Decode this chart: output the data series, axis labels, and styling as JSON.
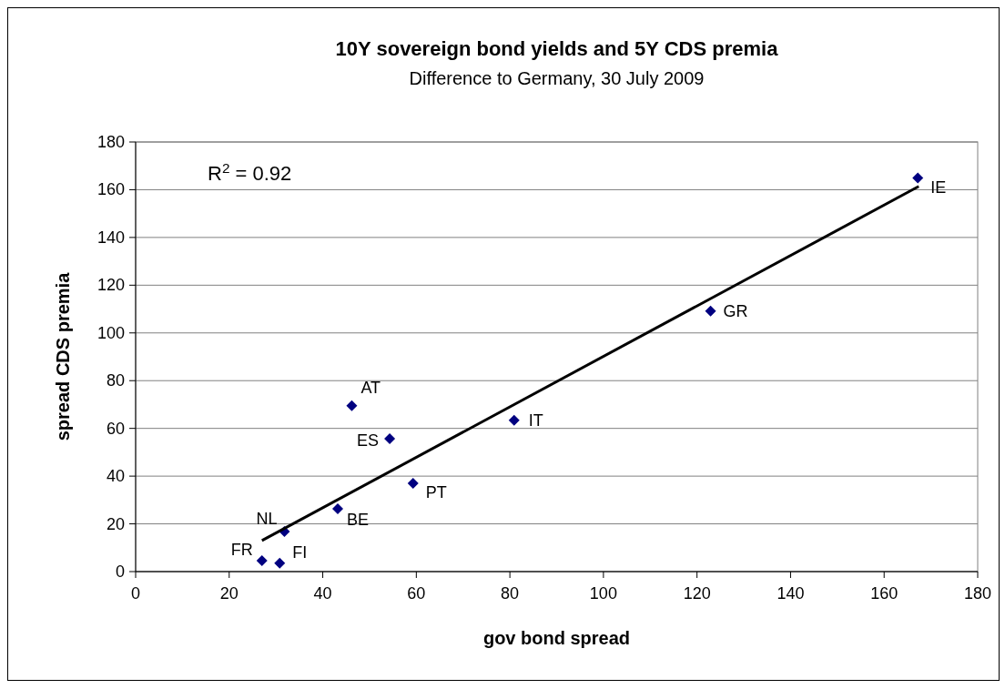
{
  "chart_data": {
    "type": "scatter",
    "title": "10Y sovereign bond yields and 5Y CDS premia",
    "subtitle": "Difference to Germany, 30 July 2009",
    "xlabel": "gov bond spread",
    "ylabel": "spread CDS premia",
    "xlim": [
      0,
      180
    ],
    "xticks": [
      0,
      20,
      40,
      60,
      80,
      100,
      120,
      140,
      160,
      180
    ],
    "ylim": [
      0,
      180
    ],
    "yticks": [
      0,
      20,
      40,
      60,
      80,
      100,
      120,
      140,
      160,
      180
    ],
    "grid": "y",
    "marker": "diamond",
    "series": [
      {
        "type": "scatter",
        "color": "#000080",
        "x": [
          167.2,
          122.9,
          80.9,
          59.3,
          54.3,
          46.2,
          43.2,
          31.8,
          27.0,
          30.8
        ],
        "values": [
          164.9,
          109.2,
          63.4,
          37.0,
          55.7,
          69.5,
          26.3,
          16.8,
          4.6,
          3.5
        ]
      },
      {
        "type": "line",
        "color": "#000000",
        "line_style": "solid",
        "marker": "none",
        "x": [
          27,
          167.4
        ],
        "values": [
          13,
          161.4
        ]
      }
    ],
    "annotations": [
      "R$^{2}$ = 0.92",
      {
        "text": "IE",
        "x": 167.2,
        "y": 164.9
      },
      {
        "text": "GR",
        "x": 122.9,
        "y": 109.2
      },
      {
        "text": "IT",
        "x": 80.9,
        "y": 63.4
      },
      {
        "text": "PT",
        "x": 59.3,
        "y": 37.0
      },
      {
        "text": "ES",
        "x": 54.3,
        "y": 55.7
      },
      {
        "text": "AT",
        "x": 46.2,
        "y": 69.5
      },
      {
        "text": "BE",
        "x": 43.2,
        "y": 26.3
      },
      {
        "text": "NL",
        "x": 31.8,
        "y": 16.8
      },
      {
        "text": "FR",
        "x": 27.0,
        "y": 4.6
      },
      {
        "text": "FI",
        "x": 30.8,
        "y": 3.5
      }
    ]
  }
}
